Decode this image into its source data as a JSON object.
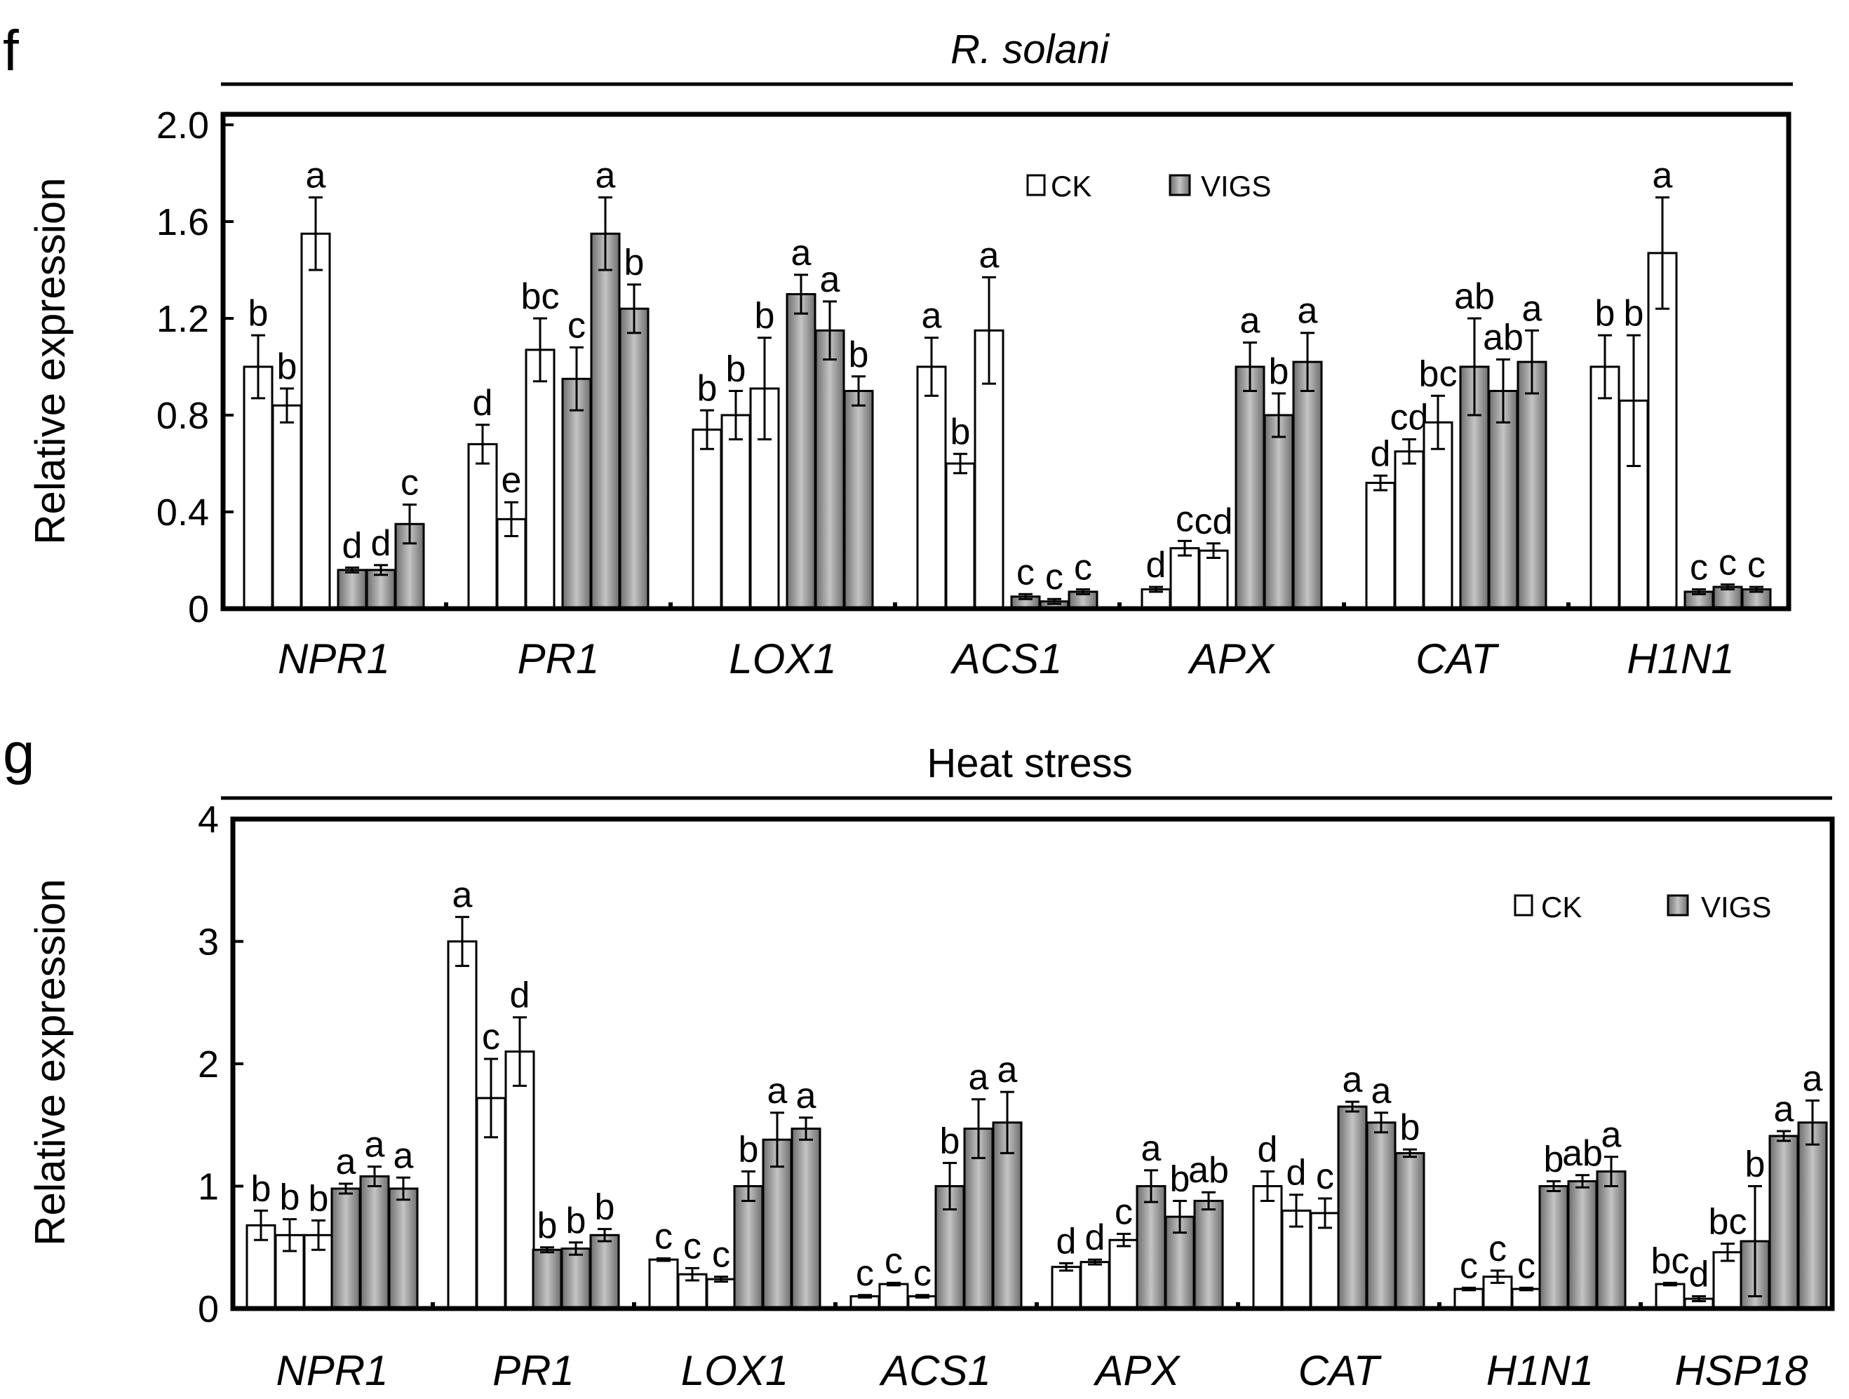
{
  "chart_data": [
    {
      "type": "bar",
      "panel_letter": "f",
      "title": "R. solani",
      "title_italic": true,
      "ylabel": "Relative expression",
      "ylim": [
        0,
        2.0
      ],
      "yticks": [
        "0",
        "0.4",
        "0.8",
        "1.2",
        "1.6",
        "2.0"
      ],
      "ytick_values": [
        0,
        0.4,
        0.8,
        1.2,
        1.6,
        2.0
      ],
      "legend": {
        "position": "top-right",
        "entries": [
          {
            "label": "CK",
            "color": "#ffffff"
          },
          {
            "label": "VIGS",
            "color": "#9a9a9a"
          }
        ]
      },
      "categories": [
        "NPR1",
        "PR1",
        "LOX1",
        "ACS1",
        "APX",
        "CAT",
        "H1N1"
      ],
      "groups": [
        {
          "ck": [
            1.0,
            0.84,
            1.55
          ],
          "ck_err": [
            0.13,
            0.07,
            0.15
          ],
          "vigs": [
            0.16,
            0.16,
            0.35
          ],
          "vigs_err": [
            0.01,
            0.02,
            0.08
          ],
          "labels": [
            "b",
            "b",
            "a",
            "d",
            "d",
            "c"
          ]
        },
        {
          "ck": [
            0.68,
            0.37,
            1.07
          ],
          "ck_err": [
            0.08,
            0.07,
            0.13
          ],
          "vigs": [
            0.95,
            1.55,
            1.24
          ],
          "vigs_err": [
            0.13,
            0.15,
            0.1
          ],
          "labels": [
            "d",
            "e",
            "bc",
            "c",
            "a",
            "b"
          ]
        },
        {
          "ck": [
            0.74,
            0.8,
            0.91
          ],
          "ck_err": [
            0.08,
            0.1,
            0.21
          ],
          "vigs": [
            1.3,
            1.15,
            0.9
          ],
          "vigs_err": [
            0.08,
            0.12,
            0.06
          ],
          "labels": [
            "b",
            "b",
            "b",
            "a",
            "a",
            "b"
          ]
        },
        {
          "ck": [
            1.0,
            0.6,
            1.15
          ],
          "ck_err": [
            0.12,
            0.04,
            0.22
          ],
          "vigs": [
            0.05,
            0.03,
            0.07
          ],
          "vigs_err": [
            0.01,
            0.01,
            0.01
          ],
          "labels": [
            "a",
            "b",
            "a",
            "c",
            "c",
            "c"
          ]
        },
        {
          "ck": [
            0.08,
            0.25,
            0.24
          ],
          "ck_err": [
            0.01,
            0.03,
            0.03
          ],
          "vigs": [
            1.0,
            0.8,
            1.02
          ],
          "vigs_err": [
            0.1,
            0.09,
            0.12
          ],
          "labels": [
            "d",
            "c",
            "cd",
            "a",
            "b",
            "a"
          ]
        },
        {
          "ck": [
            0.52,
            0.65,
            0.77
          ],
          "ck_err": [
            0.03,
            0.05,
            0.11
          ],
          "vigs": [
            1.0,
            0.9,
            1.02
          ],
          "vigs_err": [
            0.2,
            0.13,
            0.13
          ],
          "labels": [
            "d",
            "cd",
            "bc",
            "ab",
            "ab",
            "a"
          ]
        },
        {
          "ck": [
            1.0,
            0.86,
            1.47
          ],
          "ck_err": [
            0.13,
            0.27,
            0.23
          ],
          "vigs": [
            0.07,
            0.09,
            0.08
          ],
          "vigs_err": [
            0.01,
            0.01,
            0.01
          ],
          "labels": [
            "b",
            "b",
            "a",
            "c",
            "c",
            "c"
          ]
        }
      ]
    },
    {
      "type": "bar",
      "panel_letter": "g",
      "title": "Heat stress",
      "title_italic": false,
      "ylabel": "Relative expression",
      "ylim": [
        0,
        4
      ],
      "yticks": [
        "0",
        "1",
        "2",
        "3",
        "4"
      ],
      "ytick_values": [
        0,
        1,
        2,
        3,
        4
      ],
      "legend": {
        "position": "top-right",
        "entries": [
          {
            "label": "CK",
            "color": "#ffffff"
          },
          {
            "label": "VIGS",
            "color": "#9a9a9a"
          }
        ]
      },
      "categories": [
        "NPR1",
        "PR1",
        "LOX1",
        "ACS1",
        "APX",
        "CAT",
        "H1N1",
        "HSP18"
      ],
      "groups": [
        {
          "ck": [
            0.68,
            0.6,
            0.6
          ],
          "ck_err": [
            0.12,
            0.13,
            0.12
          ],
          "vigs": [
            0.98,
            1.08,
            0.98
          ],
          "vigs_err": [
            0.04,
            0.08,
            0.09
          ],
          "labels": [
            "b",
            "b",
            "b",
            "a",
            "a",
            "a"
          ]
        },
        {
          "ck": [
            3.0,
            1.72,
            2.1
          ],
          "ck_err": [
            0.2,
            0.32,
            0.28
          ],
          "vigs": [
            0.48,
            0.49,
            0.6
          ],
          "vigs_err": [
            0.02,
            0.05,
            0.05
          ],
          "labels": [
            "a",
            "c",
            "d",
            "b",
            "b",
            "b"
          ]
        },
        {
          "ck": [
            0.4,
            0.28,
            0.24
          ],
          "ck_err": [
            0.01,
            0.05,
            0.02
          ],
          "vigs": [
            1.0,
            1.38,
            1.47
          ],
          "vigs_err": [
            0.12,
            0.22,
            0.09
          ],
          "labels": [
            "c",
            "c",
            "c",
            "b",
            "a",
            "a"
          ]
        },
        {
          "ck": [
            0.1,
            0.2,
            0.1
          ],
          "ck_err": [
            0.01,
            0.01,
            0.01
          ],
          "vigs": [
            1.0,
            1.47,
            1.52
          ],
          "vigs_err": [
            0.19,
            0.24,
            0.25
          ],
          "labels": [
            "c",
            "c",
            "c",
            "b",
            "a",
            "a"
          ]
        },
        {
          "ck": [
            0.34,
            0.38,
            0.56
          ],
          "ck_err": [
            0.03,
            0.02,
            0.05
          ],
          "vigs": [
            1.0,
            0.75,
            0.88
          ],
          "vigs_err": [
            0.13,
            0.13,
            0.07
          ],
          "labels": [
            "d",
            "d",
            "c",
            "a",
            "b",
            "ab"
          ]
        },
        {
          "ck": [
            1.0,
            0.8,
            0.78
          ],
          "ck_err": [
            0.12,
            0.13,
            0.12
          ],
          "vigs": [
            1.65,
            1.52,
            1.27
          ],
          "vigs_err": [
            0.04,
            0.08,
            0.03
          ],
          "labels": [
            "d",
            "d",
            "c",
            "a",
            "a",
            "b"
          ]
        },
        {
          "ck": [
            0.16,
            0.26,
            0.16
          ],
          "ck_err": [
            0.01,
            0.05,
            0.01
          ],
          "vigs": [
            1.0,
            1.04,
            1.12
          ],
          "vigs_err": [
            0.04,
            0.05,
            0.12
          ],
          "labels": [
            "c",
            "c",
            "c",
            "b",
            "ab",
            "a"
          ]
        },
        {
          "ck": [
            0.2,
            0.08,
            0.46
          ],
          "ck_err": [
            0.01,
            0.02,
            0.07
          ],
          "vigs": [
            0.55,
            1.41,
            1.52
          ],
          "vigs_err": [
            0.45,
            0.04,
            0.18
          ],
          "labels": [
            "bc",
            "d",
            "bc",
            "b",
            "a",
            "a"
          ]
        }
      ]
    }
  ]
}
